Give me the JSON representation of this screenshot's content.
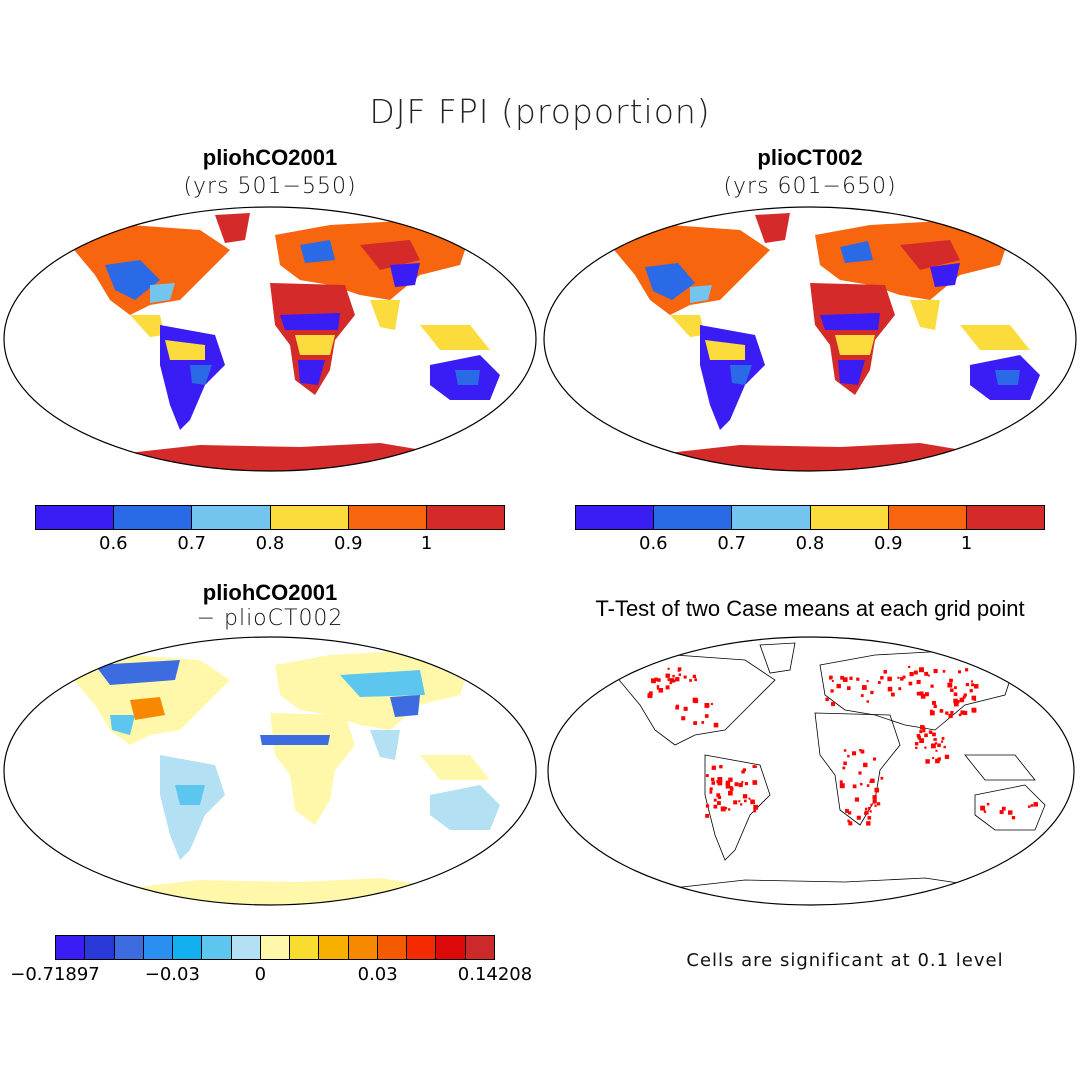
{
  "title": "DJF FPI (proportion)",
  "panels": {
    "p1": {
      "title": "pliohCO2001",
      "subtitle": "(yrs 501−550)"
    },
    "p2": {
      "title": "plioCT002",
      "subtitle": "(yrs 601−650)"
    },
    "p3": {
      "title": "pliohCO2001",
      "subtitle": "− plioCT002"
    },
    "p4": {
      "title": "T-Test of two Case means at each grid point",
      "note": "Cells are significant at 0.1 level"
    }
  },
  "colorbar_top": {
    "colors": [
      "#3a1cf5",
      "#2a6ae6",
      "#74c4f0",
      "#fbdc3c",
      "#f7650e",
      "#d42a2a"
    ],
    "ticks": [
      "0.6",
      "0.7",
      "0.8",
      "0.9",
      "1"
    ]
  },
  "colorbar_diff": {
    "colors": [
      "#3a1cf5",
      "#2839d8",
      "#3c6ce0",
      "#2a8ff0",
      "#12b0f0",
      "#5cc6ee",
      "#b4e0f4",
      "#fff8aa",
      "#f8dc30",
      "#f8b000",
      "#f88800",
      "#f45a00",
      "#f42a00",
      "#dc0a0a",
      "#cc2a2a"
    ],
    "ticks": [
      "−0.71897",
      "−0.03",
      "0",
      "0.03",
      "0.14208"
    ]
  },
  "map_fills": {
    "land": "#ffffff",
    "outline": "#000000",
    "sig": "#ff0000"
  }
}
